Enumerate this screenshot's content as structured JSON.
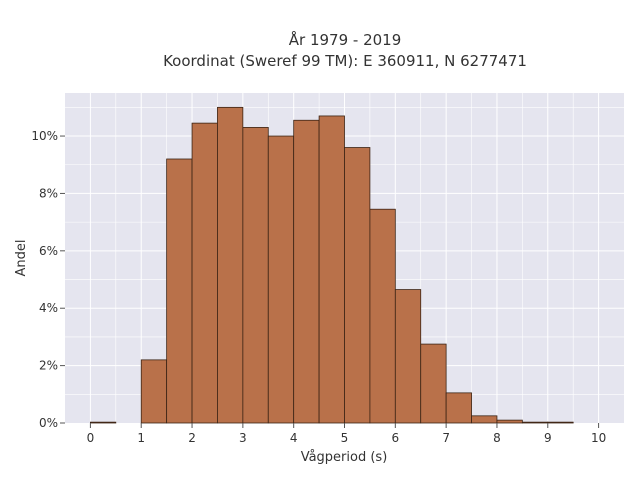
{
  "chart_data": {
    "type": "bar",
    "title_line1": "År 1979 - 2019",
    "title_line2": "Koordinat (Sweref 99 TM): E 360911, N 6277471",
    "xlabel": "Vågperiod (s)",
    "ylabel": "Andel",
    "bin_width": 0.5,
    "bin_starts": [
      0,
      0.5,
      1,
      1.5,
      2,
      2.5,
      3,
      3.5,
      4,
      4.5,
      5,
      5.5,
      6,
      6.5,
      7,
      7.5,
      8,
      8.5,
      9,
      9.5
    ],
    "values": [
      0.03,
      0,
      2.2,
      9.2,
      10.45,
      11.0,
      10.3,
      10.0,
      10.55,
      10.7,
      9.6,
      7.45,
      4.65,
      2.75,
      1.05,
      0.25,
      0.1,
      0.03,
      0.03,
      0
    ],
    "xlim": [
      -0.5,
      10.5
    ],
    "ylim": [
      0,
      11.5
    ],
    "x_ticks": [
      "0",
      "1",
      "2",
      "3",
      "4",
      "5",
      "6",
      "7",
      "8",
      "9",
      "10"
    ],
    "y_ticks": [
      "0%",
      "2%",
      "4%",
      "6%",
      "8%",
      "10%"
    ],
    "y_tick_values": [
      0,
      2,
      4,
      6,
      8,
      10
    ],
    "grid": true,
    "bar_color": "#b9714a",
    "bar_edge_color": "#3b2314",
    "plot_bg": "#e5e5ef"
  }
}
